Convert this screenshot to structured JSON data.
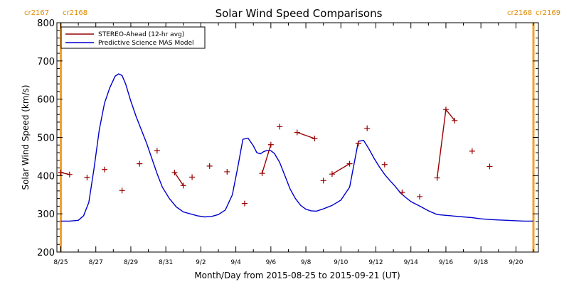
{
  "chart_data": {
    "type": "line",
    "title": "Solar Wind Speed Comparisons",
    "xlabel": "Month/Day from 2015-08-25 to 2015-09-21 (UT)",
    "ylabel": "Solar Wind Speed (km/s)",
    "x_unit": "day",
    "xlim": [
      "2015-08-25",
      "2015-09-21"
    ],
    "ylim": [
      200,
      800
    ],
    "y_ticks": [
      200,
      300,
      400,
      500,
      600,
      700,
      800
    ],
    "x_tick_labels": [
      "8/25",
      "8/27",
      "8/29",
      "8/31",
      "9/2",
      "9/4",
      "9/6",
      "9/8",
      "9/10",
      "9/12",
      "9/14",
      "9/16",
      "9/18",
      "9/20"
    ],
    "x_tick_dates": [
      "2015-08-25",
      "2015-08-27",
      "2015-08-29",
      "2015-08-31",
      "2015-09-02",
      "2015-09-04",
      "2015-09-06",
      "2015-09-08",
      "2015-09-10",
      "2015-09-12",
      "2015-09-14",
      "2015-09-16",
      "2015-09-18",
      "2015-09-20"
    ],
    "legend_position": "top-left",
    "carrington_left": [
      "cr2167",
      "cr2168"
    ],
    "carrington_right": [
      "cr2168",
      "cr2169"
    ],
    "carrington_markers": [
      "2015-08-25",
      "2015-09-21"
    ],
    "series": [
      {
        "name": "STEREO-Ahead (12-hr avg)",
        "color": "#990000",
        "marker": "+",
        "x": [
          "2015-08-25T00:00",
          "2015-08-25T12:00",
          "2015-08-26T12:00",
          "2015-08-27T12:00",
          "2015-08-28T12:00",
          "2015-08-29T12:00",
          "2015-08-30T12:00",
          "2015-08-31T12:00",
          "2015-09-01T00:00",
          "2015-09-01T12:00",
          "2015-09-02T12:00",
          "2015-09-03T12:00",
          "2015-09-04T12:00",
          "2015-09-05T12:00",
          "2015-09-06T00:00",
          "2015-09-06T12:00",
          "2015-09-07T12:00",
          "2015-09-08T12:00",
          "2015-09-09T00:00",
          "2015-09-09T12:00",
          "2015-09-10T12:00",
          "2015-09-11T00:00",
          "2015-09-11T12:00",
          "2015-09-12T12:00",
          "2015-09-13T12:00",
          "2015-09-14T12:00",
          "2015-09-15T12:00",
          "2015-09-16T00:00",
          "2015-09-16T12:00",
          "2015-09-17T12:00",
          "2015-09-18T12:00",
          "2015-09-19T12:00",
          "2015-09-20T12:00"
        ],
        "values": [
          408,
          403,
          395,
          416,
          361,
          431,
          465,
          408,
          374,
          396,
          425,
          410,
          327,
          406,
          481,
          528,
          513,
          497,
          387,
          404,
          431,
          484,
          524,
          429,
          356,
          345,
          394,
          573,
          544,
          464,
          424,
          null,
          null
        ],
        "segments": [
          [
            0,
            1
          ],
          [
            7,
            8
          ],
          [
            13,
            14
          ],
          [
            16,
            17
          ],
          [
            19,
            20
          ],
          [
            26,
            27,
            28
          ]
        ]
      },
      {
        "name": "Predictive Science MAS Model",
        "color": "#0000cc",
        "x_days": [
          0,
          0.5,
          1.0,
          1.3,
          1.6,
          1.9,
          2.2,
          2.5,
          2.8,
          3.1,
          3.3,
          3.5,
          3.7,
          4.0,
          4.3,
          4.6,
          4.9,
          5.2,
          5.5,
          5.8,
          6.2,
          6.6,
          7.0,
          7.4,
          7.8,
          8.2,
          8.6,
          9.0,
          9.4,
          9.8,
          10.1,
          10.4,
          10.7,
          11.0,
          11.2,
          11.4,
          11.6,
          11.8,
          12.0,
          12.2,
          12.5,
          12.8,
          13.1,
          13.4,
          13.7,
          14.0,
          14.3,
          14.6,
          15.0,
          15.5,
          16.0,
          16.5,
          17.0,
          17.3,
          17.6,
          17.9,
          18.2,
          18.5,
          18.8,
          19.1,
          19.4,
          19.7,
          20.0,
          20.3,
          20.6,
          21.0,
          21.5,
          22.0,
          22.5,
          23.0,
          23.5,
          24.0,
          24.5,
          25.0,
          25.5,
          26.0,
          26.5,
          27.0
        ],
        "values": [
          281,
          281,
          283,
          295,
          330,
          420,
          520,
          590,
          630,
          660,
          666,
          662,
          640,
          595,
          555,
          520,
          485,
          445,
          405,
          370,
          340,
          318,
          305,
          300,
          295,
          292,
          293,
          298,
          310,
          350,
          420,
          495,
          498,
          478,
          460,
          457,
          463,
          466,
          465,
          458,
          435,
          400,
          365,
          340,
          322,
          312,
          308,
          307,
          313,
          322,
          336,
          370,
          490,
          492,
          470,
          445,
          423,
          403,
          387,
          372,
          355,
          343,
          332,
          325,
          318,
          308,
          298,
          296,
          294,
          292,
          290,
          287,
          285,
          284,
          283,
          282,
          281,
          281
        ]
      }
    ]
  }
}
